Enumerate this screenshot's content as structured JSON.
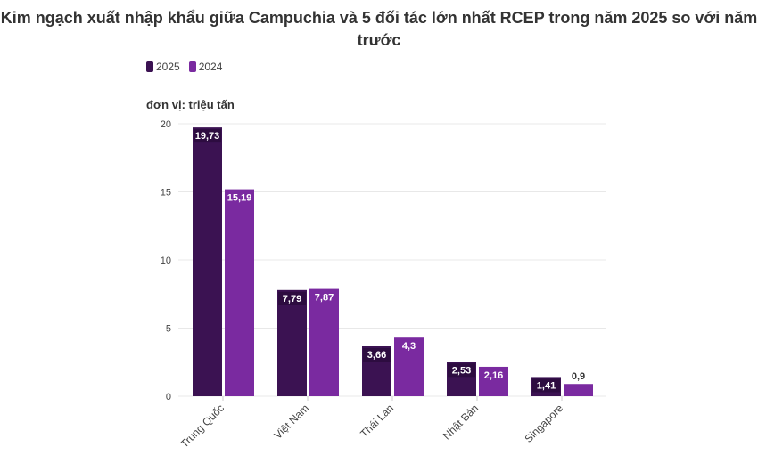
{
  "chart_data": {
    "type": "bar",
    "title": "Kim ngạch xuất nhập khẩu giữa Campuchia và 5 đối tác lớn nhất RCEP trong năm 2025 so với năm trước",
    "ylabel": "đơn vị: triệu tấn",
    "xlabel": "",
    "categories": [
      "Trung Quốc",
      "Việt Nam",
      "Thái Lan",
      "Nhật Bản",
      "Singapore"
    ],
    "series": [
      {
        "name": "2025",
        "color": "#3b1252",
        "values": [
          19.73,
          7.79,
          3.66,
          2.53,
          1.41
        ],
        "labels": [
          "19,73",
          "7,79",
          "3,66",
          "2,53",
          "1,41"
        ]
      },
      {
        "name": "2024",
        "color": "#7a2aa0",
        "values": [
          15.19,
          7.87,
          4.3,
          2.16,
          0.9
        ],
        "labels": [
          "15,19",
          "7,87",
          "4,3",
          "2,16",
          "0,9"
        ]
      }
    ],
    "ylim": [
      0,
      20
    ],
    "yticks": [
      "0",
      "5",
      "10",
      "15",
      "20"
    ],
    "grid": true,
    "legend": "top-left"
  }
}
